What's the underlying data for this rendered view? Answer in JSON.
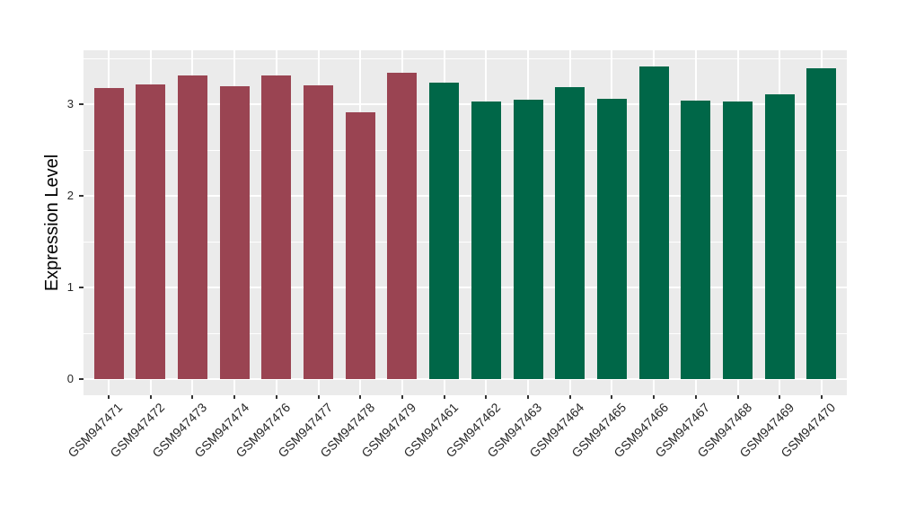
{
  "chart_data": {
    "type": "bar",
    "title": "",
    "xlabel": "",
    "ylabel": "Expression Level",
    "categories": [
      "GSM947471",
      "GSM947472",
      "GSM947473",
      "GSM947474",
      "GSM947476",
      "GSM947477",
      "GSM947478",
      "GSM947479",
      "GSM947461",
      "GSM947462",
      "GSM947463",
      "GSM947464",
      "GSM947465",
      "GSM947466",
      "GSM947467",
      "GSM947468",
      "GSM947469",
      "GSM947470"
    ],
    "values": [
      3.18,
      3.22,
      3.32,
      3.2,
      3.32,
      3.21,
      2.92,
      3.35,
      3.24,
      3.03,
      3.05,
      3.19,
      3.06,
      3.42,
      3.04,
      3.03,
      3.11,
      3.4
    ],
    "bar_colors": [
      "#9A4452",
      "#9A4452",
      "#9A4452",
      "#9A4452",
      "#9A4452",
      "#9A4452",
      "#9A4452",
      "#9A4452",
      "#006748",
      "#006748",
      "#006748",
      "#006748",
      "#006748",
      "#006748",
      "#006748",
      "#006748",
      "#006748",
      "#006748"
    ],
    "group_colors": {
      "left_group_maroon": "#9A4452",
      "right_group_green": "#006748"
    },
    "yticks": [
      0,
      1,
      2,
      3
    ],
    "yticks_minor": [
      0.5,
      1.5,
      2.5,
      3.5
    ],
    "ylim": [
      -0.177,
      3.594
    ],
    "grid": "on",
    "legend": "none",
    "style": {
      "panel_background": "#EBEBEB",
      "gridline_color": "#FFFFFF",
      "tick_mark_color": "#333333",
      "tick_text_color": "#262626",
      "x_label_angle_deg": 45
    }
  }
}
